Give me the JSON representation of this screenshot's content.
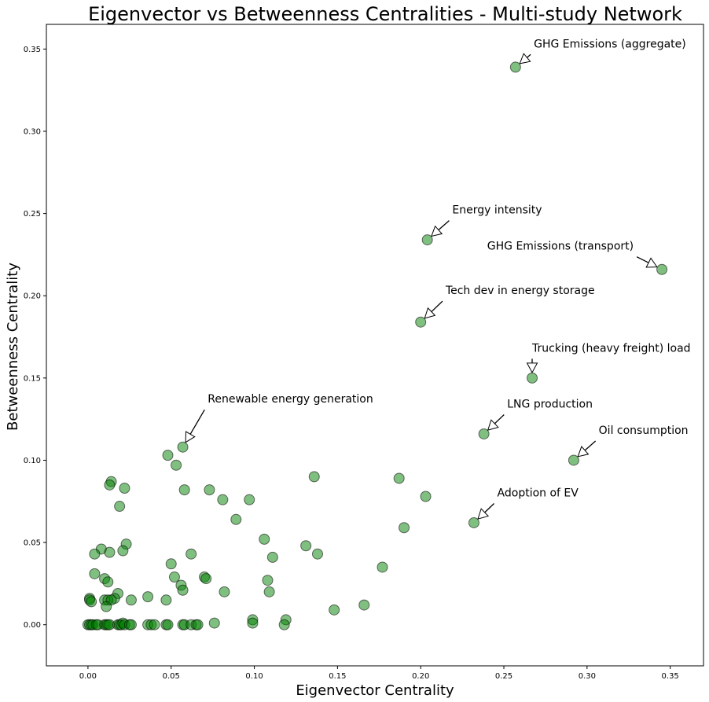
{
  "chart_data": {
    "type": "scatter",
    "title": "Eigenvector vs Betweenness Centralities - Multi-study Network",
    "xlabel": "Eigenvector Centrality",
    "ylabel": "Betweenness Centrality",
    "xlim": [
      -0.025,
      0.37
    ],
    "ylim": [
      -0.025,
      0.365
    ],
    "xticks": [
      0.0,
      0.05,
      0.1,
      0.15,
      0.2,
      0.25,
      0.3,
      0.35
    ],
    "yticks": [
      0.0,
      0.05,
      0.1,
      0.15,
      0.2,
      0.25,
      0.3,
      0.35
    ],
    "xtick_labels": [
      "0.00",
      "0.05",
      "0.10",
      "0.15",
      "0.20",
      "0.25",
      "0.30",
      "0.35"
    ],
    "ytick_labels": [
      "0.00",
      "0.05",
      "0.10",
      "0.15",
      "0.20",
      "0.25",
      "0.30",
      "0.35"
    ],
    "grid": false,
    "marker_color": "#008000",
    "marker_edge": "#000000",
    "points": [
      {
        "x": 0.257,
        "y": 0.339
      },
      {
        "x": 0.204,
        "y": 0.234
      },
      {
        "x": 0.345,
        "y": 0.216
      },
      {
        "x": 0.2,
        "y": 0.184
      },
      {
        "x": 0.267,
        "y": 0.15
      },
      {
        "x": 0.238,
        "y": 0.116
      },
      {
        "x": 0.292,
        "y": 0.1
      },
      {
        "x": 0.232,
        "y": 0.062
      },
      {
        "x": 0.057,
        "y": 0.108
      },
      {
        "x": 0.048,
        "y": 0.103
      },
      {
        "x": 0.053,
        "y": 0.097
      },
      {
        "x": 0.014,
        "y": 0.087
      },
      {
        "x": 0.013,
        "y": 0.085
      },
      {
        "x": 0.022,
        "y": 0.083
      },
      {
        "x": 0.058,
        "y": 0.082
      },
      {
        "x": 0.073,
        "y": 0.082
      },
      {
        "x": 0.019,
        "y": 0.072
      },
      {
        "x": 0.081,
        "y": 0.076
      },
      {
        "x": 0.097,
        "y": 0.076
      },
      {
        "x": 0.089,
        "y": 0.064
      },
      {
        "x": 0.136,
        "y": 0.09
      },
      {
        "x": 0.187,
        "y": 0.089
      },
      {
        "x": 0.203,
        "y": 0.078
      },
      {
        "x": 0.19,
        "y": 0.059
      },
      {
        "x": 0.106,
        "y": 0.052
      },
      {
        "x": 0.131,
        "y": 0.048
      },
      {
        "x": 0.138,
        "y": 0.043
      },
      {
        "x": 0.111,
        "y": 0.041
      },
      {
        "x": 0.177,
        "y": 0.035
      },
      {
        "x": 0.108,
        "y": 0.027
      },
      {
        "x": 0.109,
        "y": 0.02
      },
      {
        "x": 0.166,
        "y": 0.012
      },
      {
        "x": 0.148,
        "y": 0.009
      },
      {
        "x": 0.023,
        "y": 0.049
      },
      {
        "x": 0.008,
        "y": 0.046
      },
      {
        "x": 0.013,
        "y": 0.044
      },
      {
        "x": 0.004,
        "y": 0.043
      },
      {
        "x": 0.021,
        "y": 0.045
      },
      {
        "x": 0.062,
        "y": 0.043
      },
      {
        "x": 0.05,
        "y": 0.037
      },
      {
        "x": 0.004,
        "y": 0.031
      },
      {
        "x": 0.052,
        "y": 0.029
      },
      {
        "x": 0.07,
        "y": 0.029
      },
      {
        "x": 0.071,
        "y": 0.028
      },
      {
        "x": 0.01,
        "y": 0.028
      },
      {
        "x": 0.012,
        "y": 0.026
      },
      {
        "x": 0.056,
        "y": 0.024
      },
      {
        "x": 0.057,
        "y": 0.021
      },
      {
        "x": 0.082,
        "y": 0.02
      },
      {
        "x": 0.018,
        "y": 0.019
      },
      {
        "x": 0.036,
        "y": 0.017
      },
      {
        "x": 0.016,
        "y": 0.016
      },
      {
        "x": 0.001,
        "y": 0.016
      },
      {
        "x": 0.026,
        "y": 0.015
      },
      {
        "x": 0.047,
        "y": 0.015
      },
      {
        "x": 0.01,
        "y": 0.015
      },
      {
        "x": 0.012,
        "y": 0.015
      },
      {
        "x": 0.014,
        "y": 0.015
      },
      {
        "x": 0.001,
        "y": 0.015
      },
      {
        "x": 0.002,
        "y": 0.014
      },
      {
        "x": 0.011,
        "y": 0.011
      },
      {
        "x": 0.099,
        "y": 0.003
      },
      {
        "x": 0.119,
        "y": 0.003
      },
      {
        "x": 0.076,
        "y": 0.001
      },
      {
        "x": 0.099,
        "y": 0.001
      },
      {
        "x": 0.118,
        "y": 0.0
      },
      {
        "x": 0.0,
        "y": 0.0
      },
      {
        "x": 0.001,
        "y": 0.0
      },
      {
        "x": 0.002,
        "y": 0.0
      },
      {
        "x": 0.003,
        "y": 0.0
      },
      {
        "x": 0.005,
        "y": 0.0
      },
      {
        "x": 0.006,
        "y": 0.0
      },
      {
        "x": 0.01,
        "y": 0.0
      },
      {
        "x": 0.011,
        "y": 0.0
      },
      {
        "x": 0.012,
        "y": 0.0
      },
      {
        "x": 0.013,
        "y": 0.0
      },
      {
        "x": 0.018,
        "y": 0.0
      },
      {
        "x": 0.019,
        "y": 0.0
      },
      {
        "x": 0.02,
        "y": 0.0
      },
      {
        "x": 0.021,
        "y": 0.001
      },
      {
        "x": 0.022,
        "y": 0.0
      },
      {
        "x": 0.025,
        "y": 0.0
      },
      {
        "x": 0.026,
        "y": 0.0
      },
      {
        "x": 0.036,
        "y": 0.0
      },
      {
        "x": 0.038,
        "y": 0.0
      },
      {
        "x": 0.04,
        "y": 0.0
      },
      {
        "x": 0.047,
        "y": 0.0
      },
      {
        "x": 0.048,
        "y": 0.0
      },
      {
        "x": 0.057,
        "y": 0.0
      },
      {
        "x": 0.058,
        "y": 0.0
      },
      {
        "x": 0.062,
        "y": 0.0
      },
      {
        "x": 0.065,
        "y": 0.0
      },
      {
        "x": 0.066,
        "y": 0.0
      }
    ],
    "annotations": [
      {
        "text": "GHG Emissions (aggregate)",
        "point": [
          0.257,
          0.339
        ],
        "text_at": [
          0.268,
          0.351
        ],
        "anchor": "start"
      },
      {
        "text": "Energy intensity",
        "point": [
          0.204,
          0.234
        ],
        "text_at": [
          0.219,
          0.25
        ],
        "anchor": "start"
      },
      {
        "text": "GHG Emissions (transport)",
        "point": [
          0.345,
          0.216
        ],
        "text_at": [
          0.328,
          0.228
        ],
        "anchor": "end"
      },
      {
        "text": "Tech dev in energy storage",
        "point": [
          0.2,
          0.184
        ],
        "text_at": [
          0.215,
          0.201
        ],
        "anchor": "start"
      },
      {
        "text": "Trucking (heavy freight) load",
        "point": [
          0.267,
          0.15
        ],
        "text_at": [
          0.267,
          0.166
        ],
        "anchor": "start"
      },
      {
        "text": "LNG production",
        "point": [
          0.238,
          0.116
        ],
        "text_at": [
          0.252,
          0.132
        ],
        "anchor": "start"
      },
      {
        "text": "Oil consumption",
        "point": [
          0.292,
          0.1
        ],
        "text_at": [
          0.307,
          0.116
        ],
        "anchor": "start"
      },
      {
        "text": "Adoption of EV",
        "point": [
          0.232,
          0.062
        ],
        "text_at": [
          0.246,
          0.078
        ],
        "anchor": "start"
      },
      {
        "text": "Renewable energy generation",
        "point": [
          0.057,
          0.108
        ],
        "text_at": [
          0.072,
          0.135
        ],
        "anchor": "start"
      }
    ]
  }
}
